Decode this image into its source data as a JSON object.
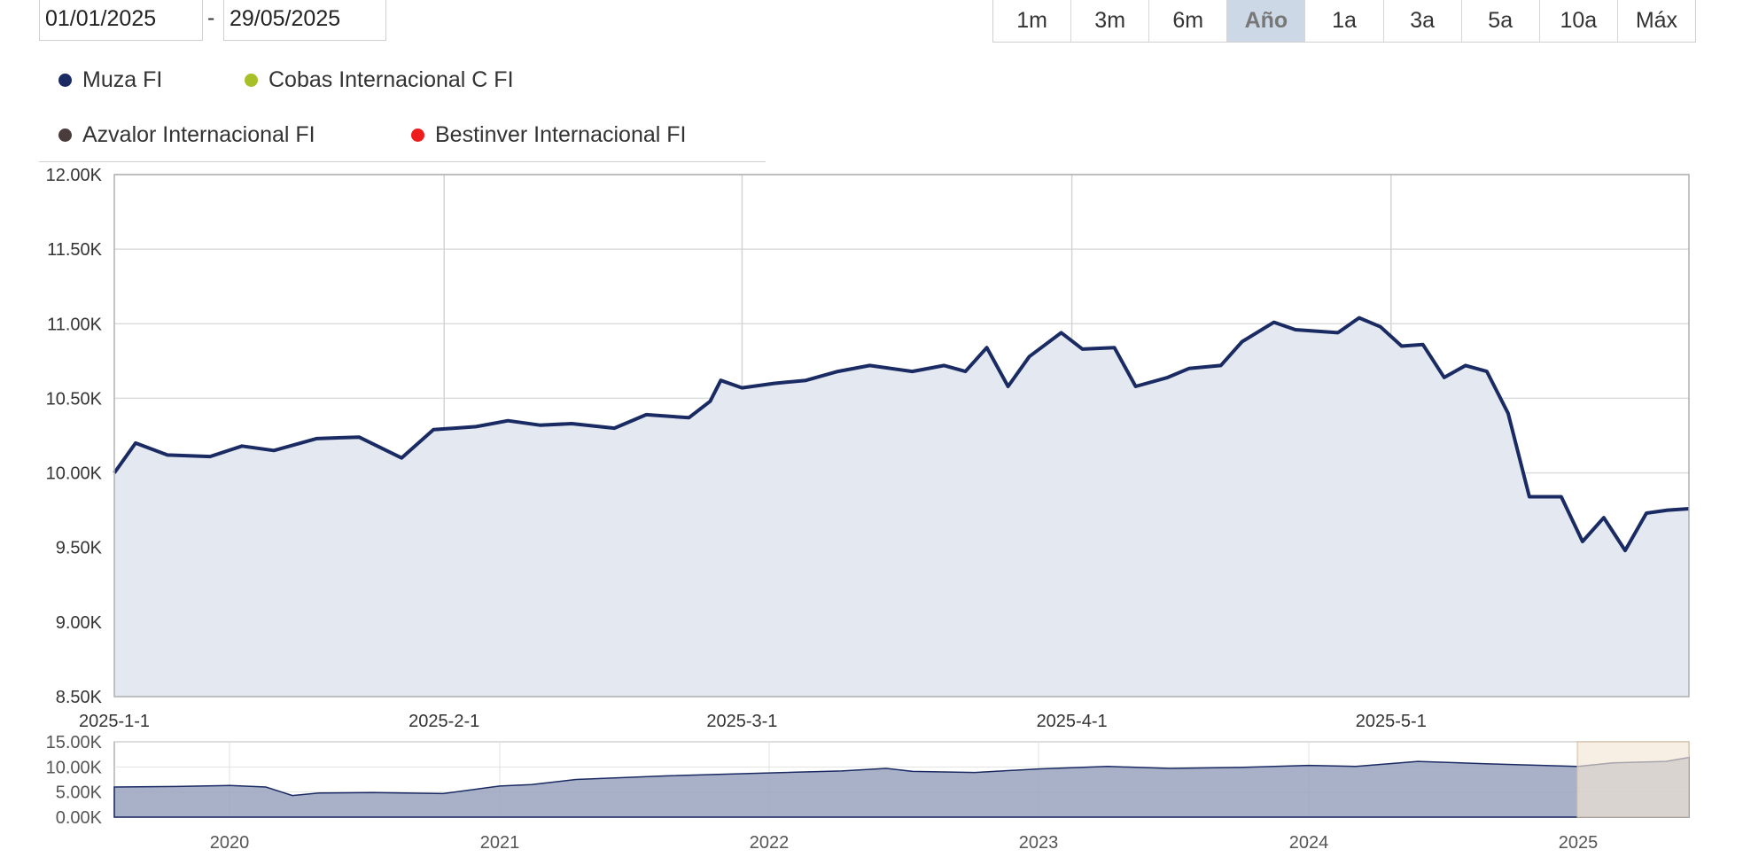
{
  "date_range": {
    "from": "01/01/2025",
    "separator": "-",
    "to": "29/05/2025"
  },
  "range_buttons": [
    {
      "label": "1m"
    },
    {
      "label": "3m"
    },
    {
      "label": "6m"
    },
    {
      "label": "Año",
      "active": true
    },
    {
      "label": "1a"
    },
    {
      "label": "3a"
    },
    {
      "label": "5a"
    },
    {
      "label": "10a"
    },
    {
      "label": "Máx"
    }
  ],
  "colors": {
    "muza": "#1a2a63",
    "cobas": "#a8c027",
    "azvalor": "#4a3c3c",
    "bestinver": "#ee1c1c",
    "area_fill": "#e4e8f0",
    "navigator_fill": "#9aa3c0",
    "navigator_mask": "#f3e6d4"
  },
  "chart_data": {
    "type": "line",
    "x_ticks": [
      "2025-1-1",
      "2025-2-1",
      "2025-3-1",
      "2025-4-1",
      "2025-5-1"
    ],
    "x_range": [
      "2025-01-01",
      "2025-05-29"
    ],
    "y_ticks": [
      "12.00K",
      "11.50K",
      "11.00K",
      "10.50K",
      "10.00K",
      "9.50K",
      "9.00K",
      "8.50K"
    ],
    "ylim": [
      8500,
      12000
    ],
    "grid": true,
    "legend_position": "top-left",
    "series": [
      {
        "name": "Muza FI",
        "color_key": "muza",
        "points": [
          [
            "2025-01-01",
            10000
          ],
          [
            "2025-01-03",
            10200
          ],
          [
            "2025-01-06",
            10120
          ],
          [
            "2025-01-10",
            10110
          ],
          [
            "2025-01-13",
            10180
          ],
          [
            "2025-01-16",
            10150
          ],
          [
            "2025-01-20",
            10230
          ],
          [
            "2025-01-24",
            10240
          ],
          [
            "2025-01-28",
            10100
          ],
          [
            "2025-01-31",
            10290
          ],
          [
            "2025-02-04",
            10310
          ],
          [
            "2025-02-07",
            10350
          ],
          [
            "2025-02-10",
            10320
          ],
          [
            "2025-02-13",
            10330
          ],
          [
            "2025-02-17",
            10300
          ],
          [
            "2025-02-20",
            10390
          ],
          [
            "2025-02-24",
            10370
          ],
          [
            "2025-02-26",
            10480
          ],
          [
            "2025-02-27",
            10620
          ],
          [
            "2025-03-01",
            10570
          ],
          [
            "2025-03-04",
            10600
          ],
          [
            "2025-03-07",
            10620
          ],
          [
            "2025-03-10",
            10680
          ],
          [
            "2025-03-13",
            10720
          ],
          [
            "2025-03-17",
            10680
          ],
          [
            "2025-03-20",
            10720
          ],
          [
            "2025-03-22",
            10680
          ],
          [
            "2025-03-24",
            10840
          ],
          [
            "2025-03-26",
            10580
          ],
          [
            "2025-03-28",
            10780
          ],
          [
            "2025-03-31",
            10940
          ],
          [
            "2025-04-02",
            10830
          ],
          [
            "2025-04-05",
            10840
          ],
          [
            "2025-04-07",
            10580
          ],
          [
            "2025-04-10",
            10640
          ],
          [
            "2025-04-12",
            10700
          ],
          [
            "2025-04-15",
            10720
          ],
          [
            "2025-04-17",
            10880
          ],
          [
            "2025-04-20",
            11010
          ],
          [
            "2025-04-22",
            10960
          ],
          [
            "2025-04-26",
            10940
          ],
          [
            "2025-04-28",
            11040
          ],
          [
            "2025-04-30",
            10980
          ],
          [
            "2025-05-02",
            10850
          ],
          [
            "2025-05-04",
            10860
          ],
          [
            "2025-05-06",
            10640
          ],
          [
            "2025-05-08",
            10720
          ],
          [
            "2025-05-10",
            10680
          ],
          [
            "2025-05-12",
            10400
          ],
          [
            "2025-05-14",
            9840
          ],
          [
            "2025-05-17",
            9840
          ],
          [
            "2025-05-19",
            9540
          ],
          [
            "2025-05-21",
            9700
          ],
          [
            "2025-05-23",
            9480
          ],
          [
            "2025-05-25",
            9730
          ],
          [
            "2025-05-27",
            9750
          ],
          [
            "2025-05-29",
            9760
          ]
        ]
      }
    ],
    "navigator": {
      "x_ticks": [
        "2020",
        "2021",
        "2022",
        "2023",
        "2024",
        "2025"
      ],
      "y_ticks": [
        "15.00K",
        "10.00K",
        "5.00K",
        "0.00K"
      ]
    }
  },
  "legend": [
    {
      "label": "Muza FI",
      "color_key": "muza"
    },
    {
      "label": "Cobas Internacional C FI",
      "color_key": "cobas"
    },
    {
      "label": "Azvalor Internacional FI",
      "color_key": "azvalor"
    },
    {
      "label": "Bestinver Internacional FI",
      "color_key": "bestinver"
    }
  ]
}
